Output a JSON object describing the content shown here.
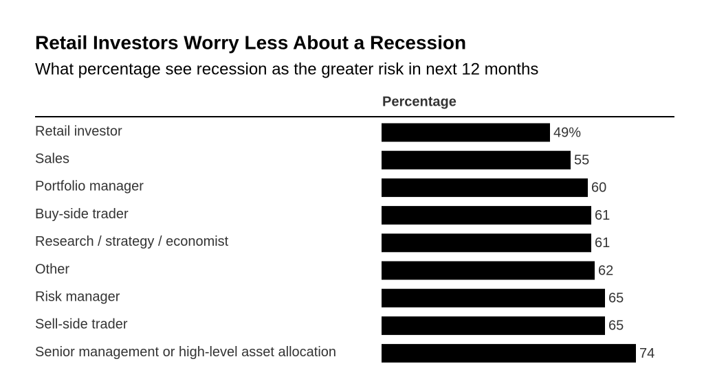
{
  "chart_data": {
    "type": "bar",
    "orientation": "horizontal",
    "title": "Retail Investors Worry Less About a Recession",
    "subtitle": "What percentage see recession as the greater risk in next 12 months",
    "column_header": "Percentage",
    "categories": [
      "Retail investor",
      "Sales",
      "Portfolio manager",
      "Buy-side trader",
      "Research / strategy / economist",
      "Other",
      "Risk manager",
      "Sell-side trader",
      "Senior management or high-level asset allocation"
    ],
    "values": [
      49,
      55,
      60,
      61,
      61,
      62,
      65,
      65,
      74
    ],
    "value_labels": [
      "49%",
      "55",
      "60",
      "61",
      "61",
      "62",
      "65",
      "65",
      "74"
    ],
    "color": "#000000"
  }
}
